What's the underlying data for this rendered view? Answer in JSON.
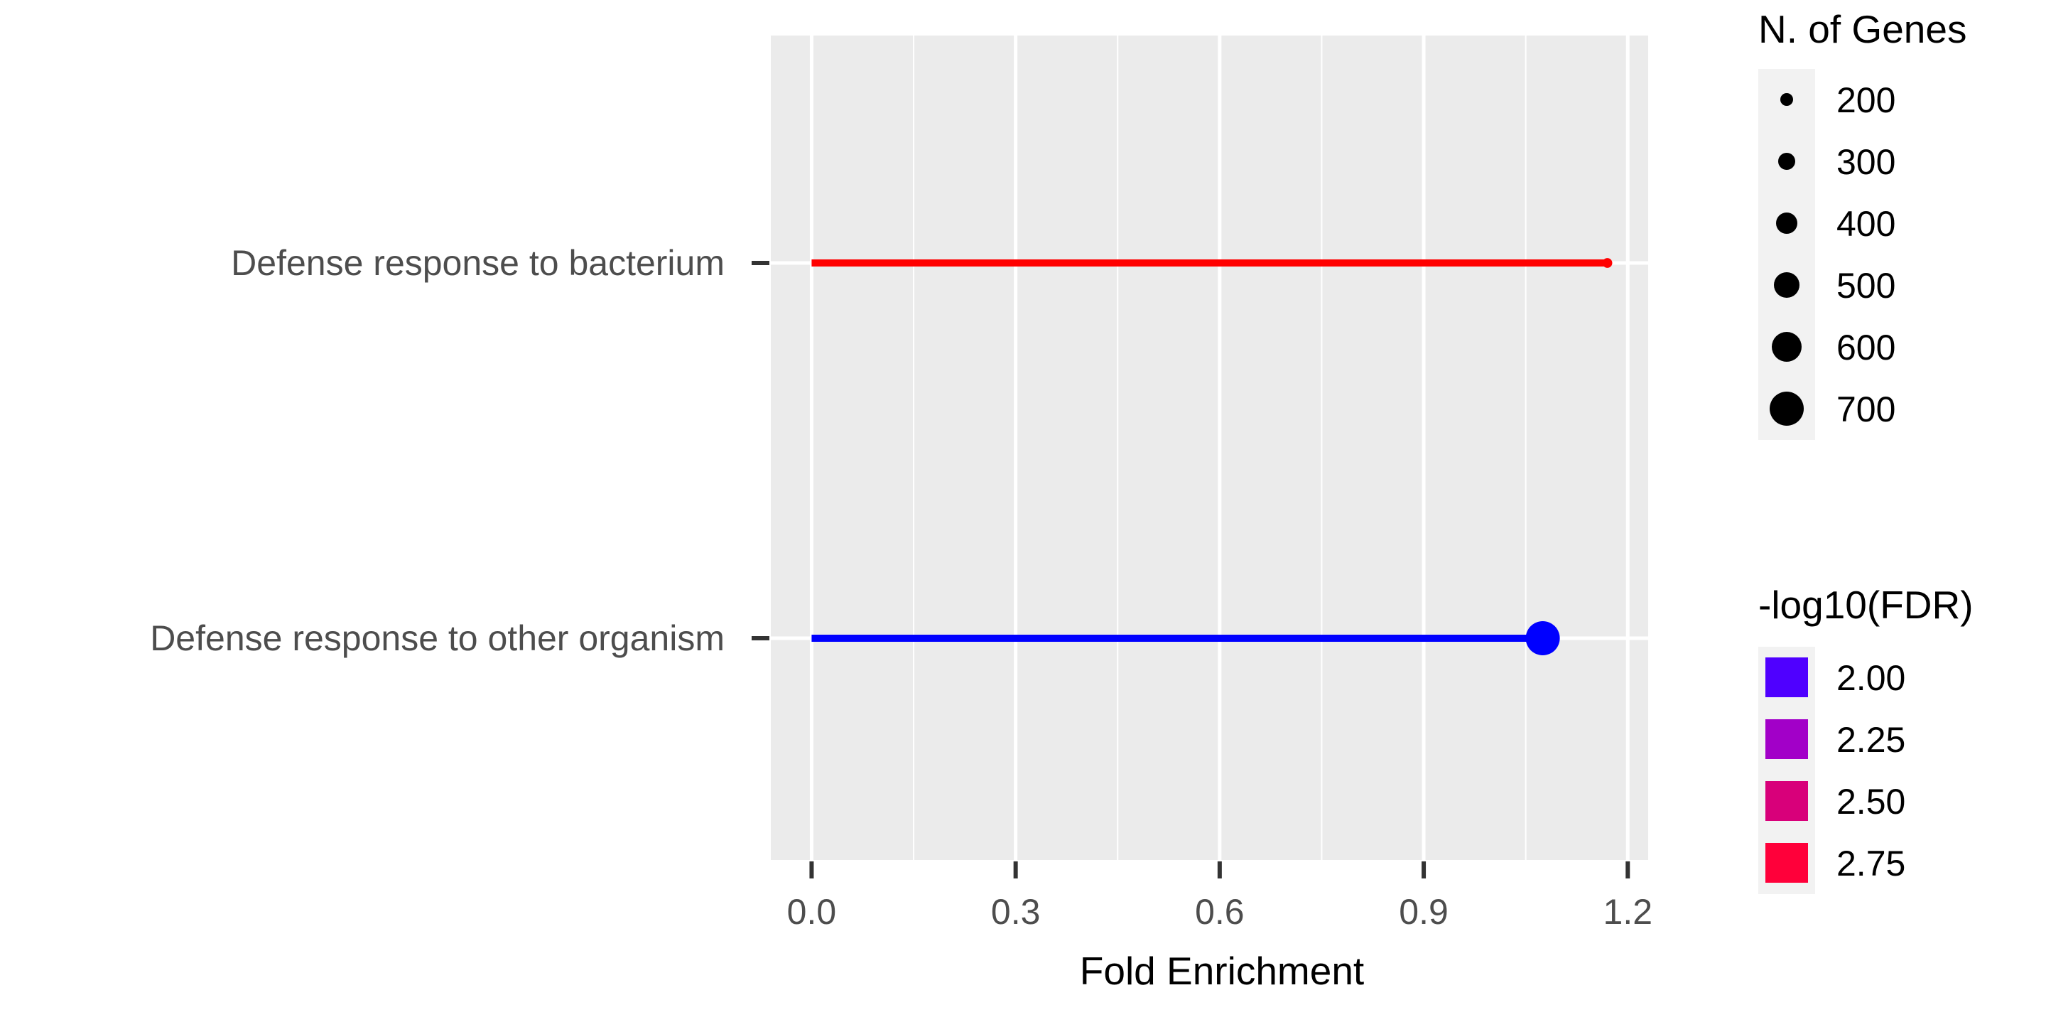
{
  "chart_data": {
    "type": "lollipop",
    "title": "",
    "xlabel": "Fold Enrichment",
    "ylabel": "",
    "xlim": [
      -0.06,
      1.23
    ],
    "x_ticks": [
      "0.0",
      "0.3",
      "0.6",
      "0.9",
      "1.2"
    ],
    "x_tick_values": [
      0.0,
      0.3,
      0.6,
      0.9,
      1.2
    ],
    "x_minor_values": [
      0.15,
      0.45,
      0.75,
      1.05
    ],
    "grid": true,
    "panel_background": "#ebebeb",
    "categories": [
      "Defense response to bacterium",
      "Defense response to other organism"
    ],
    "points": [
      {
        "category": "Defense response to bacterium",
        "fold_enrichment": 1.17,
        "n_genes": 130,
        "neg_log10_fdr": 2.95,
        "color": "#ff0000"
      },
      {
        "category": "Defense response to other organism",
        "fold_enrichment": 1.075,
        "n_genes": 700,
        "neg_log10_fdr": 1.95,
        "color": "#0000ff"
      }
    ],
    "size_legend": {
      "title": "N. of Genes",
      "items": [
        {
          "label": "200",
          "value": 200
        },
        {
          "label": "300",
          "value": 300
        },
        {
          "label": "400",
          "value": 400
        },
        {
          "label": "500",
          "value": 500
        },
        {
          "label": "600",
          "value": 600
        },
        {
          "label": "700",
          "value": 700
        }
      ]
    },
    "color_legend": {
      "title": "-log10(FDR)",
      "items": [
        {
          "label": "2.00",
          "color": "#4f00ff"
        },
        {
          "label": "2.25",
          "color": "#a200c8"
        },
        {
          "label": "2.50",
          "color": "#d8007a"
        },
        {
          "label": "2.75",
          "color": "#ff003a"
        }
      ]
    }
  }
}
